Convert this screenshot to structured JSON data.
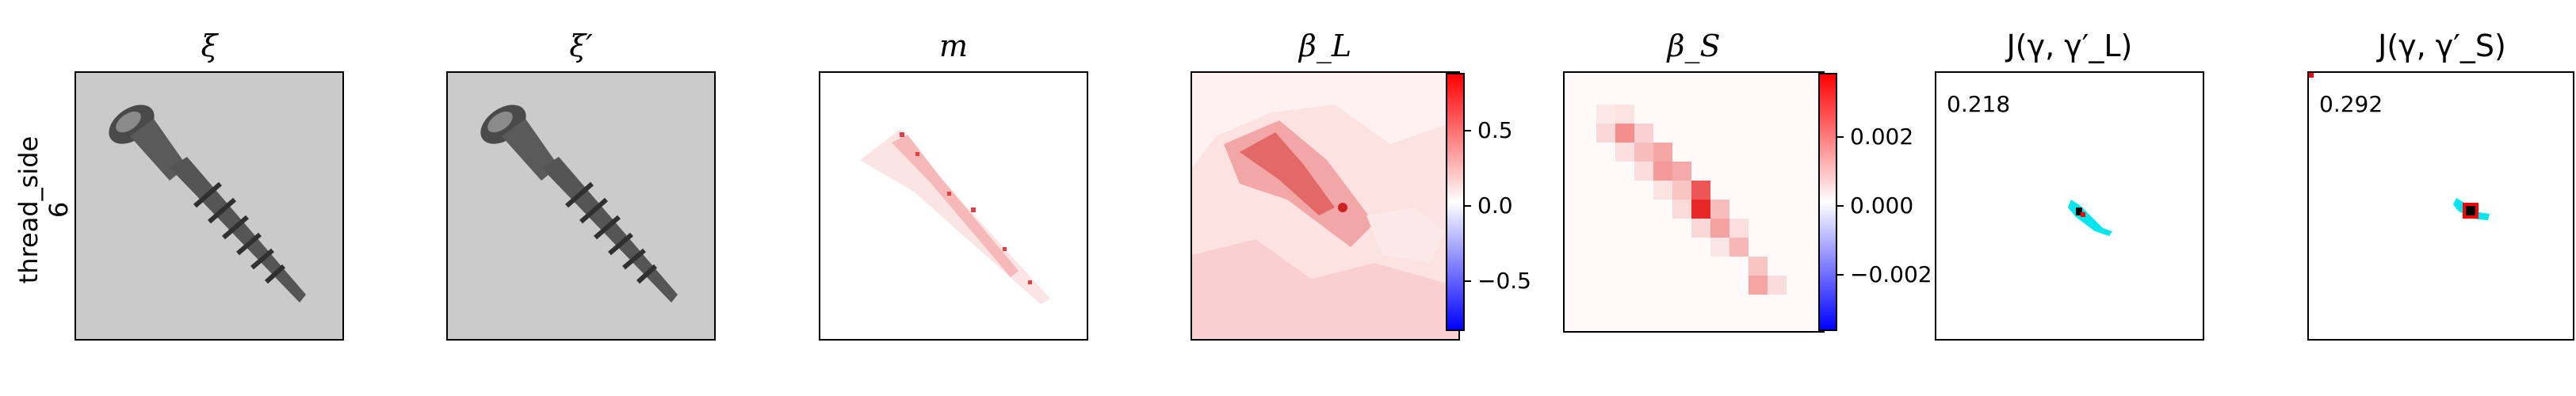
{
  "row_label": {
    "line1": "thread_side",
    "line2": "6"
  },
  "panels": [
    {
      "title": "ξ",
      "kind": "image",
      "name": "xi"
    },
    {
      "title": "ξ′",
      "kind": "image",
      "name": "xi-prime"
    },
    {
      "title": "m",
      "kind": "mask",
      "name": "m"
    },
    {
      "title": "β_L",
      "kind": "beta_l",
      "name": "beta-l",
      "colorbar": {
        "ticks": [
          "0.5",
          "0.0",
          "−0.5"
        ],
        "cmap": "bwr"
      }
    },
    {
      "title": "β_S",
      "kind": "beta_s",
      "name": "beta-s",
      "colorbar": {
        "ticks": [
          "0.002",
          "0.000",
          "−0.002"
        ],
        "cmap": "bwr"
      }
    },
    {
      "title": "J(γ, γ′_L)",
      "kind": "jaccard",
      "name": "j-l",
      "score": "0.218"
    },
    {
      "title": "J(γ, γ′_S)",
      "kind": "jaccard",
      "name": "j-s",
      "score": "0.292"
    }
  ],
  "colors": {
    "red": "#ff0000",
    "blue": "#0000ff",
    "cyan": "#00e5ee",
    "grey_bg": "#c9c9c9"
  }
}
